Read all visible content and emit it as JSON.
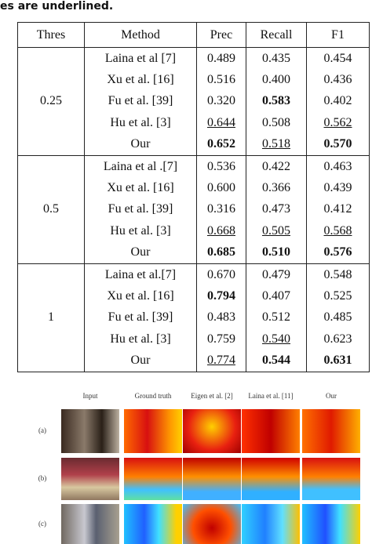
{
  "header": {
    "caption_fragment": "es are underlined."
  },
  "table": {
    "columns": [
      "Thres",
      "Method",
      "Prec",
      "Recall",
      "F1"
    ],
    "groups": [
      {
        "thres": "0.25",
        "rows": [
          {
            "method": "Laina et al [7]",
            "cells": [
              {
                "text": "0.489"
              },
              {
                "text": "0.435"
              },
              {
                "text": "0.454"
              }
            ]
          },
          {
            "method": "Xu et al. [16]",
            "cells": [
              {
                "text": "0.516"
              },
              {
                "text": "0.400"
              },
              {
                "text": "0.436"
              }
            ]
          },
          {
            "method": "Fu et al. [39]",
            "cells": [
              {
                "text": "0.320"
              },
              {
                "text": "0.583",
                "style": "bold"
              },
              {
                "text": "0.402"
              }
            ]
          },
          {
            "method": "Hu et al. [3]",
            "cells": [
              {
                "text": "0.644",
                "style": "underline"
              },
              {
                "text": "0.508"
              },
              {
                "text": "0.562",
                "style": "underline"
              }
            ]
          },
          {
            "method": "Our",
            "cells": [
              {
                "text": "0.652",
                "style": "bold"
              },
              {
                "text": "0.518",
                "style": "underline"
              },
              {
                "text": "0.570",
                "style": "bold"
              }
            ]
          }
        ]
      },
      {
        "thres": "0.5",
        "rows": [
          {
            "method": "Laina et al .[7]",
            "cells": [
              {
                "text": "0.536"
              },
              {
                "text": "0.422"
              },
              {
                "text": "0.463"
              }
            ]
          },
          {
            "method": "Xu et al. [16]",
            "cells": [
              {
                "text": "0.600"
              },
              {
                "text": "0.366"
              },
              {
                "text": "0.439"
              }
            ]
          },
          {
            "method": "Fu et al. [39]",
            "cells": [
              {
                "text": "0.316"
              },
              {
                "text": "0.473"
              },
              {
                "text": "0.412"
              }
            ]
          },
          {
            "method": "Hu et al. [3]",
            "cells": [
              {
                "text": "0.668",
                "style": "underline"
              },
              {
                "text": "0.505",
                "style": "underline"
              },
              {
                "text": "0.568",
                "style": "underline"
              }
            ]
          },
          {
            "method": "Our",
            "cells": [
              {
                "text": "0.685",
                "style": "bold"
              },
              {
                "text": "0.510",
                "style": "bold"
              },
              {
                "text": "0.576",
                "style": "bold"
              }
            ]
          }
        ]
      },
      {
        "thres": "1",
        "rows": [
          {
            "method": "Laina et al.[7]",
            "cells": [
              {
                "text": "0.670"
              },
              {
                "text": "0.479"
              },
              {
                "text": "0.548"
              }
            ]
          },
          {
            "method": "Xu et al. [16]",
            "cells": [
              {
                "text": "0.794",
                "style": "bold"
              },
              {
                "text": "0.407"
              },
              {
                "text": "0.525"
              }
            ]
          },
          {
            "method": "Fu et al. [39]",
            "cells": [
              {
                "text": "0.483"
              },
              {
                "text": "0.512"
              },
              {
                "text": "0.485"
              }
            ]
          },
          {
            "method": "Hu et al. [3]",
            "cells": [
              {
                "text": "0.759"
              },
              {
                "text": "0.540",
                "style": "underline"
              },
              {
                "text": "0.623"
              }
            ]
          },
          {
            "method": "Our",
            "cells": [
              {
                "text": "0.774",
                "style": "underline"
              },
              {
                "text": "0.544",
                "style": "bold"
              },
              {
                "text": "0.631",
                "style": "bold"
              }
            ]
          }
        ]
      }
    ]
  },
  "figure": {
    "columns": [
      "Input",
      "Ground truth",
      "Eigen et al. [2]",
      "Laina et al. [11]",
      "Our"
    ],
    "rows": [
      "(a)",
      "(b)",
      "(c)"
    ]
  }
}
